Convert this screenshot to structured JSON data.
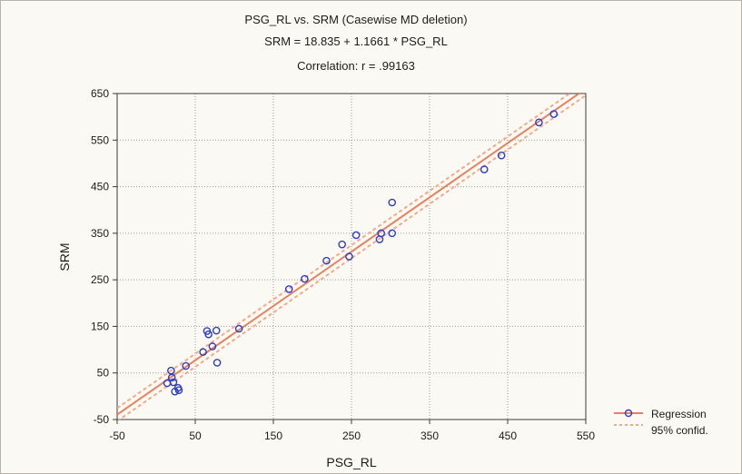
{
  "chart_data": {
    "type": "scatter",
    "title": "PSG_RL vs. SRM (Casewise MD deletion)",
    "subtitle": "SRM = 18.835 + 1.1661 * PSG_RL",
    "annotation": "Correlation: r = .99163",
    "xlabel": "PSG_RL",
    "ylabel": "SRM",
    "xlim": [
      -50,
      550
    ],
    "ylim": [
      -50,
      650
    ],
    "x_ticks": [
      "-50",
      "50",
      "150",
      "250",
      "350",
      "450",
      "550"
    ],
    "y_ticks": [
      "-50",
      "50",
      "150",
      "250",
      "350",
      "450",
      "550",
      "650"
    ],
    "x_tick_values": [
      -50,
      50,
      150,
      250,
      350,
      450,
      550
    ],
    "y_tick_values": [
      -50,
      50,
      150,
      250,
      350,
      450,
      550,
      650
    ],
    "grid": true,
    "regression": {
      "intercept": 18.835,
      "slope": 1.1661
    },
    "confidence_band_offset": 14,
    "legend": {
      "placement": "bottom-right",
      "entries": [
        "Regression",
        "95% confid."
      ]
    },
    "colors": {
      "points": "#2c3fc4",
      "regression": "#e8805a",
      "confidence": "#f2a98a",
      "grid": "#9a9a9a"
    },
    "points": [
      {
        "x": 14,
        "y": 28
      },
      {
        "x": 19,
        "y": 55
      },
      {
        "x": 20,
        "y": 40
      },
      {
        "x": 22,
        "y": 30
      },
      {
        "x": 24,
        "y": 10
      },
      {
        "x": 28,
        "y": 18
      },
      {
        "x": 29,
        "y": 13
      },
      {
        "x": 38,
        "y": 65
      },
      {
        "x": 60,
        "y": 95
      },
      {
        "x": 65,
        "y": 140
      },
      {
        "x": 67,
        "y": 133
      },
      {
        "x": 72,
        "y": 107
      },
      {
        "x": 77,
        "y": 141
      },
      {
        "x": 78,
        "y": 72
      },
      {
        "x": 106,
        "y": 145
      },
      {
        "x": 170,
        "y": 230
      },
      {
        "x": 190,
        "y": 252
      },
      {
        "x": 218,
        "y": 291
      },
      {
        "x": 238,
        "y": 326
      },
      {
        "x": 247,
        "y": 300
      },
      {
        "x": 256,
        "y": 346
      },
      {
        "x": 286,
        "y": 337
      },
      {
        "x": 288,
        "y": 350
      },
      {
        "x": 302,
        "y": 350
      },
      {
        "x": 302,
        "y": 416
      },
      {
        "x": 420,
        "y": 487
      },
      {
        "x": 442,
        "y": 517
      },
      {
        "x": 490,
        "y": 588
      },
      {
        "x": 509,
        "y": 606
      }
    ]
  }
}
